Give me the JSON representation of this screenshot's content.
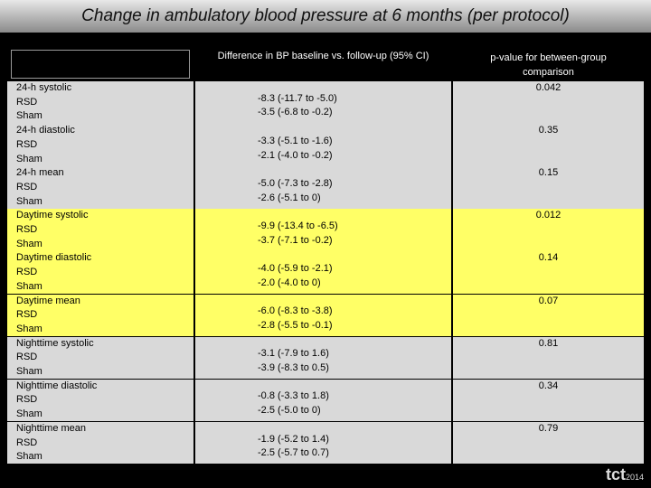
{
  "header": {
    "title": "Change in ambulatory blood pressure at 6 months (per protocol)"
  },
  "table": {
    "columns": [
      "",
      "Difference in BP baseline vs. follow-up (95% CI)",
      "p-value for between-group comparison"
    ],
    "groups": [
      {
        "labels": [
          "24-h systolic",
          "RSD",
          "Sham"
        ],
        "differences": [
          "-8.3 (-11.7 to -5.0)",
          "-3.5 (-6.8 to -0.2)"
        ],
        "p_value": "0.042",
        "highlighted": false
      },
      {
        "labels": [
          "24-h diastolic",
          "RSD",
          "Sham"
        ],
        "differences": [
          "-3.3 (-5.1 to -1.6)",
          "-2.1 (-4.0 to -0.2)"
        ],
        "p_value": "0.35",
        "highlighted": false
      },
      {
        "labels": [
          "24-h mean",
          "RSD",
          "Sham"
        ],
        "differences": [
          "-5.0 (-7.3 to -2.8)",
          "-2.6 (-5.1 to 0)"
        ],
        "p_value": "0.15",
        "highlighted": false
      },
      {
        "labels": [
          "Daytime systolic",
          "RSD",
          "Sham"
        ],
        "differences": [
          "-9.9 (-13.4 to -6.5)",
          "-3.7 (-7.1 to -0.2)"
        ],
        "p_value": "0.012",
        "highlighted": true
      },
      {
        "labels": [
          "Daytime diastolic",
          "RSD",
          "Sham"
        ],
        "differences": [
          "-4.0 (-5.9 to -2.1)",
          "-2.0 (-4.0 to 0)"
        ],
        "p_value": "0.14",
        "highlighted": true
      },
      {
        "labels": [
          "Daytime mean",
          "RSD",
          "Sham"
        ],
        "differences": [
          "-6.0 (-8.3 to -3.8)",
          "-2.8 (-5.5 to -0.1)"
        ],
        "p_value": "0.07",
        "highlighted": true
      },
      {
        "labels": [
          "Nighttime systolic",
          "RSD",
          "Sham"
        ],
        "differences": [
          "-3.1 (-7.9 to 1.6)",
          "-3.9 (-8.3 to 0.5)"
        ],
        "p_value": "0.81",
        "highlighted": false
      },
      {
        "labels": [
          "Nighttime diastolic",
          "RSD",
          "Sham"
        ],
        "differences": [
          "-0.8 (-3.3 to 1.8)",
          "-2.5 (-5.0 to 0)"
        ],
        "p_value": "0.34",
        "highlighted": false
      },
      {
        "labels": [
          "Nighttime mean",
          "RSD",
          "Sham"
        ],
        "differences": [
          "-1.9 (-5.2 to 1.4)",
          "-2.5 (-5.7 to 0.7)"
        ],
        "p_value": "0.79",
        "highlighted": false
      }
    ]
  },
  "footer": {
    "logo": "tct",
    "year": "2014"
  }
}
